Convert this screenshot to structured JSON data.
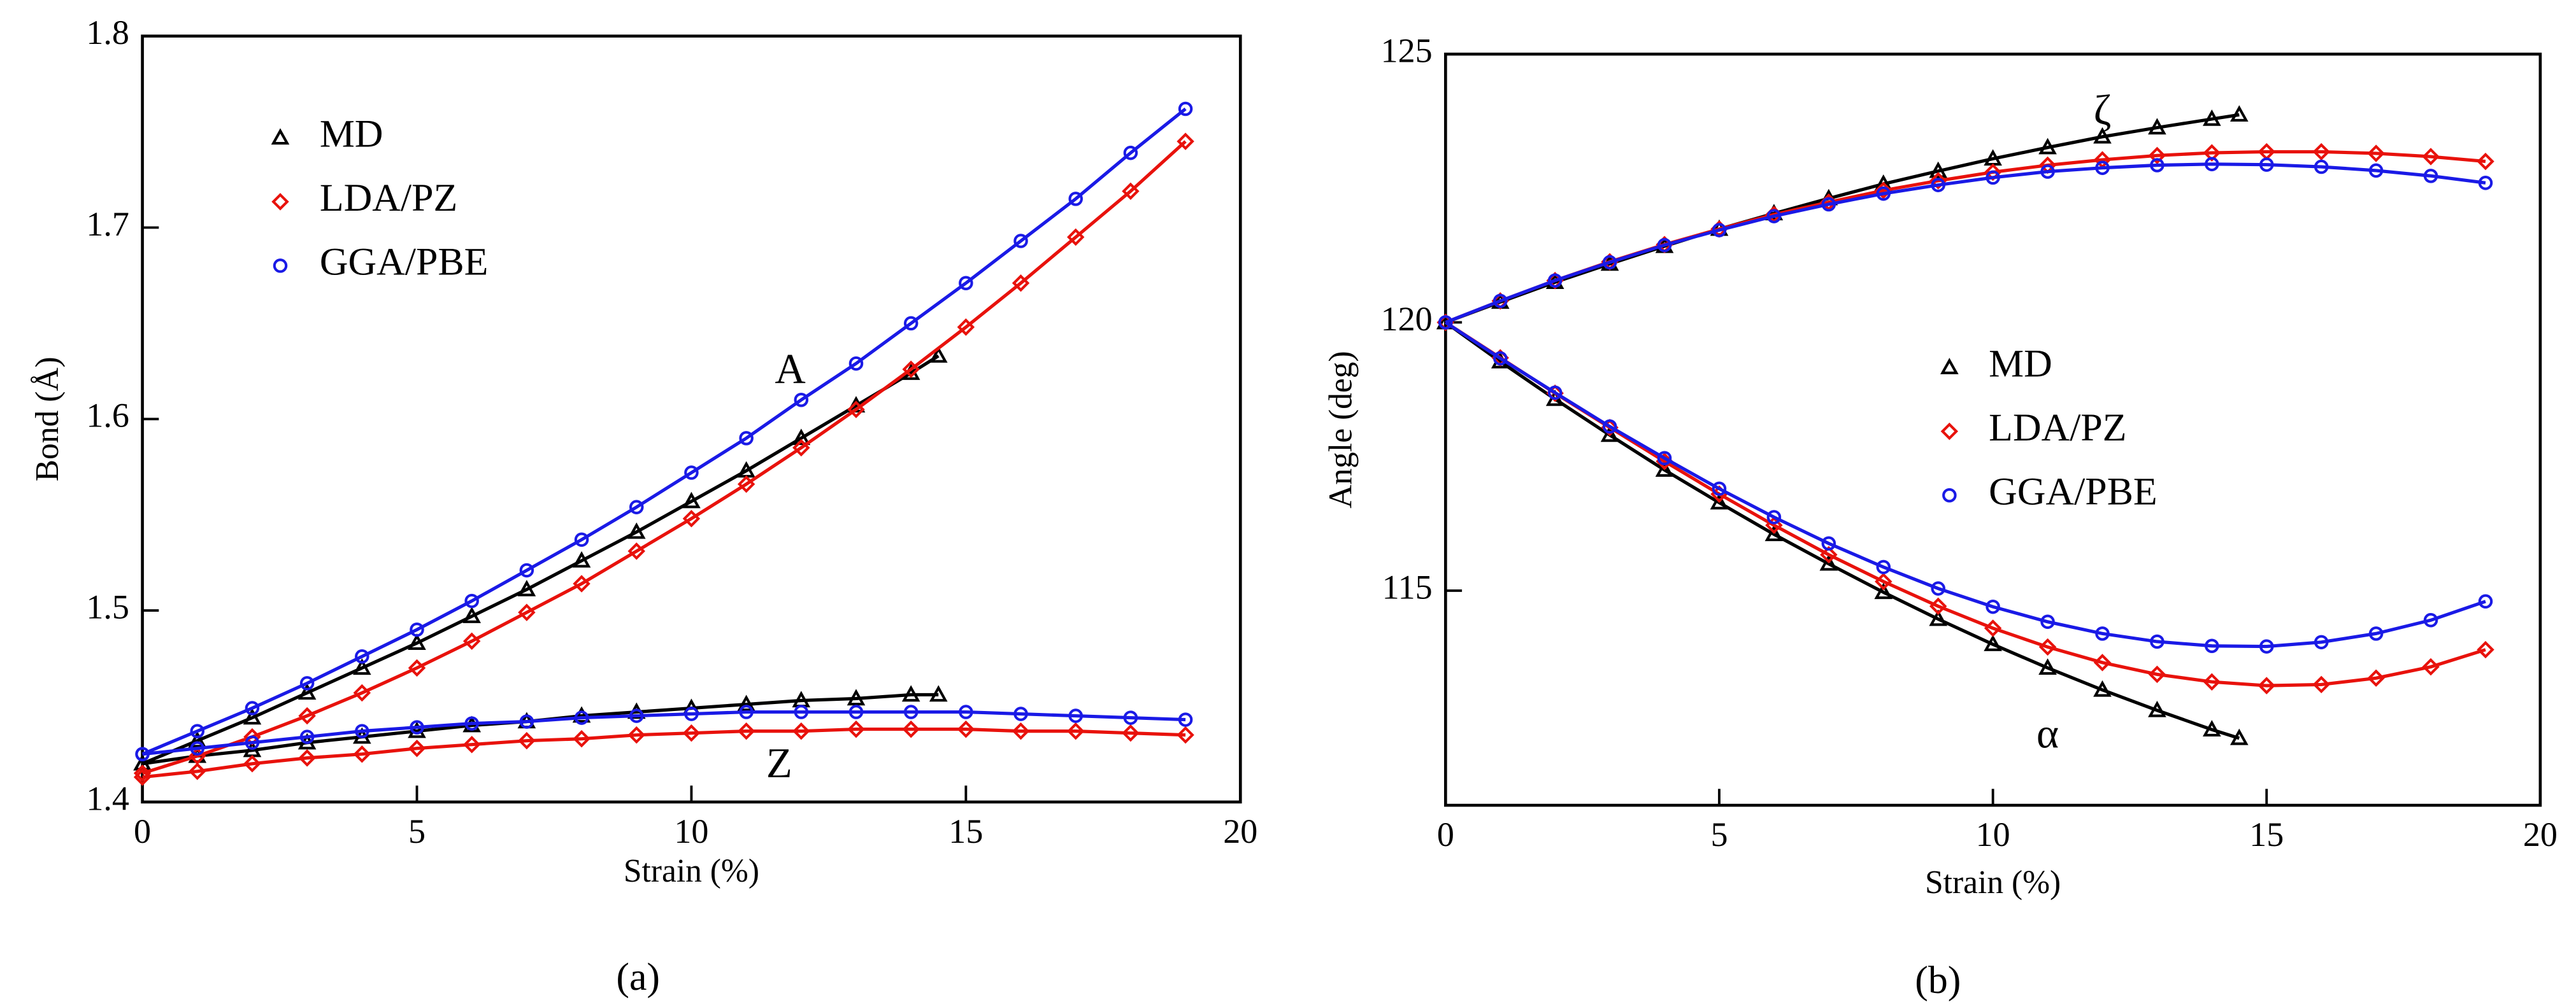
{
  "chart_data": [
    {
      "type": "line",
      "caption": "(a)",
      "xlabel": "Strain (%)",
      "ylabel": "Bond (Å)",
      "xlim": [
        0,
        20
      ],
      "ylim": [
        1.4,
        1.8
      ],
      "xticks": [
        0,
        5,
        10,
        15,
        20
      ],
      "yticks": [
        1.4,
        1.5,
        1.6,
        1.7,
        1.8
      ],
      "legend": "upper left",
      "annotations": [
        "A",
        "Z"
      ],
      "series": [
        {
          "name": "MD",
          "color": "#000000",
          "marker": "triangle",
          "curves": [
            {
              "x": [
                0,
                1,
                2,
                3,
                4,
                5,
                6,
                7,
                8,
                9,
                10,
                11,
                12,
                13,
                14,
                14.5
              ],
              "values": [
                1.42,
                1.432,
                1.444,
                1.457,
                1.47,
                1.483,
                1.497,
                1.511,
                1.526,
                1.541,
                1.557,
                1.573,
                1.59,
                1.607,
                1.624,
                1.633
              ]
            },
            {
              "x": [
                0,
                1,
                2,
                3,
                4,
                5,
                6,
                7,
                8,
                9,
                10,
                11,
                12,
                13,
                14,
                14.5
              ],
              "values": [
                1.42,
                1.424,
                1.427,
                1.431,
                1.434,
                1.437,
                1.44,
                1.442,
                1.445,
                1.447,
                1.449,
                1.451,
                1.453,
                1.454,
                1.456,
                1.456
              ]
            }
          ]
        },
        {
          "name": "LDA/PZ",
          "color": "#e8120c",
          "marker": "diamond",
          "curves": [
            {
              "x": [
                0,
                1,
                2,
                3,
                4,
                5,
                6,
                7,
                8,
                9,
                10,
                11,
                12,
                13,
                14,
                15,
                16,
                17,
                18,
                19
              ],
              "values": [
                1.415,
                1.424,
                1.434,
                1.445,
                1.457,
                1.47,
                1.484,
                1.499,
                1.514,
                1.531,
                1.548,
                1.566,
                1.585,
                1.605,
                1.626,
                1.648,
                1.671,
                1.695,
                1.719,
                1.745
              ]
            },
            {
              "x": [
                0,
                1,
                2,
                3,
                4,
                5,
                6,
                7,
                8,
                9,
                10,
                11,
                12,
                13,
                14,
                15,
                16,
                17,
                18,
                19
              ],
              "values": [
                1.413,
                1.416,
                1.42,
                1.423,
                1.425,
                1.428,
                1.43,
                1.432,
                1.433,
                1.435,
                1.436,
                1.437,
                1.437,
                1.438,
                1.438,
                1.438,
                1.437,
                1.437,
                1.436,
                1.435
              ]
            }
          ]
        },
        {
          "name": "GGA/PBE",
          "color": "#1a1ae6",
          "marker": "circle",
          "curves": [
            {
              "x": [
                0,
                1,
                2,
                3,
                4,
                5,
                6,
                7,
                8,
                9,
                10,
                11,
                12,
                13,
                14,
                15,
                16,
                17,
                18,
                19
              ],
              "values": [
                1.425,
                1.437,
                1.449,
                1.462,
                1.476,
                1.49,
                1.505,
                1.521,
                1.537,
                1.554,
                1.572,
                1.59,
                1.61,
                1.629,
                1.65,
                1.671,
                1.693,
                1.715,
                1.739,
                1.762
              ]
            },
            {
              "x": [
                0,
                1,
                2,
                3,
                4,
                5,
                6,
                7,
                8,
                9,
                10,
                11,
                12,
                13,
                14,
                15,
                16,
                17,
                18,
                19
              ],
              "values": [
                1.425,
                1.428,
                1.431,
                1.434,
                1.437,
                1.439,
                1.441,
                1.442,
                1.444,
                1.445,
                1.446,
                1.447,
                1.447,
                1.447,
                1.447,
                1.447,
                1.446,
                1.445,
                1.444,
                1.443
              ]
            }
          ]
        }
      ]
    },
    {
      "type": "line",
      "caption": "(b)",
      "xlabel": "Strain (%)",
      "ylabel": "Angle (deg)",
      "xlim": [
        0,
        20
      ],
      "ylim": [
        111,
        125
      ],
      "xticks": [
        0,
        5,
        10,
        15,
        20
      ],
      "yticks": [
        115,
        120,
        125
      ],
      "legend": "center right",
      "annotations": [
        "ζ",
        "α"
      ],
      "series": [
        {
          "name": "MD",
          "color": "#000000",
          "marker": "triangle",
          "curves": [
            {
              "x": [
                0,
                1,
                2,
                3,
                4,
                5,
                6,
                7,
                8,
                9,
                10,
                11,
                12,
                13,
                14,
                14.5
              ],
              "values": [
                120,
                120.38,
                120.75,
                121.09,
                121.42,
                121.74,
                122.03,
                122.31,
                122.58,
                122.82,
                123.05,
                123.26,
                123.46,
                123.63,
                123.79,
                123.87
              ]
            },
            {
              "x": [
                0,
                1,
                2,
                3,
                4,
                5,
                6,
                7,
                8,
                9,
                10,
                11,
                12,
                13,
                14,
                14.5
              ],
              "values": [
                120,
                119.27,
                118.57,
                117.9,
                117.25,
                116.64,
                116.05,
                115.5,
                114.97,
                114.47,
                114.0,
                113.56,
                113.15,
                112.77,
                112.41,
                112.25
              ]
            }
          ]
        },
        {
          "name": "LDA/PZ",
          "color": "#e8120c",
          "marker": "diamond",
          "curves": [
            {
              "x": [
                0,
                1,
                2,
                3,
                4,
                5,
                6,
                7,
                8,
                9,
                10,
                11,
                12,
                13,
                14,
                15,
                16,
                17,
                18,
                19
              ],
              "values": [
                120,
                120.4,
                120.78,
                121.13,
                121.45,
                121.74,
                122.01,
                122.24,
                122.46,
                122.64,
                122.8,
                122.93,
                123.03,
                123.11,
                123.16,
                123.18,
                123.18,
                123.15,
                123.09,
                123.0
              ]
            },
            {
              "x": [
                0,
                1,
                2,
                3,
                4,
                5,
                6,
                7,
                8,
                9,
                10,
                11,
                12,
                13,
                14,
                15,
                16,
                17,
                18,
                19
              ],
              "values": [
                120,
                119.34,
                118.68,
                118.04,
                117.41,
                116.8,
                116.22,
                115.67,
                115.17,
                114.71,
                114.3,
                113.95,
                113.66,
                113.44,
                113.3,
                113.23,
                113.25,
                113.37,
                113.58,
                113.9
              ]
            }
          ]
        },
        {
          "name": "GGA/PBE",
          "color": "#1a1ae6",
          "marker": "circle",
          "curves": [
            {
              "x": [
                0,
                1,
                2,
                3,
                4,
                5,
                6,
                7,
                8,
                9,
                10,
                11,
                12,
                13,
                14,
                15,
                16,
                17,
                18,
                19
              ],
              "values": [
                120,
                120.4,
                120.78,
                121.12,
                121.44,
                121.72,
                121.98,
                122.2,
                122.4,
                122.56,
                122.7,
                122.81,
                122.88,
                122.93,
                122.95,
                122.94,
                122.9,
                122.83,
                122.73,
                122.6
              ]
            },
            {
              "x": [
                0,
                1,
                2,
                3,
                4,
                5,
                6,
                7,
                8,
                9,
                10,
                11,
                12,
                13,
                14,
                15,
                16,
                17,
                18,
                19
              ],
              "values": [
                120,
                119.33,
                118.69,
                118.06,
                117.47,
                116.9,
                116.37,
                115.88,
                115.44,
                115.04,
                114.7,
                114.42,
                114.2,
                114.05,
                113.97,
                113.96,
                114.04,
                114.2,
                114.45,
                114.8
              ]
            }
          ]
        }
      ]
    }
  ]
}
